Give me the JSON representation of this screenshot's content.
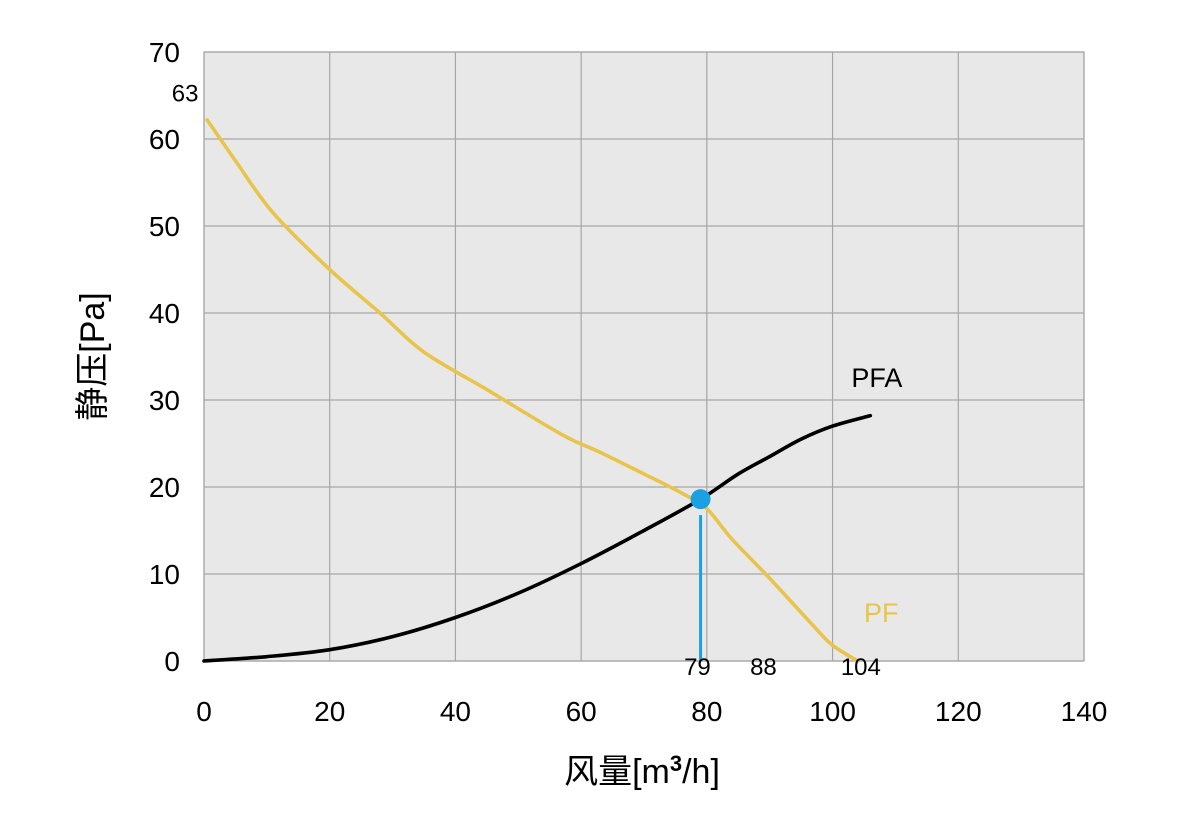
{
  "chart_data": {
    "type": "line",
    "xlabel": "风量[m³/h]",
    "xlabel_parts": {
      "main": "风量[m",
      "sup": "3",
      "tail": "/h]"
    },
    "ylabel": "静压[Pa]",
    "xlim": [
      0,
      140
    ],
    "ylim": [
      0,
      70
    ],
    "xticks": [
      0,
      20,
      40,
      60,
      80,
      100,
      120,
      140
    ],
    "yticks": [
      0,
      10,
      20,
      30,
      40,
      50,
      60,
      70
    ],
    "grid": true,
    "plot_background": "#e8e8e8",
    "grid_color": "#a6a6a6",
    "series": [
      {
        "name": "PF",
        "color": "#e8c44b",
        "label_at": [
          105,
          4.5
        ],
        "points": [
          [
            0.5,
            62.2
          ],
          [
            5,
            57.5
          ],
          [
            11,
            51.5
          ],
          [
            20,
            45
          ],
          [
            28,
            40
          ],
          [
            35,
            35.5
          ],
          [
            45,
            31.2
          ],
          [
            57,
            26
          ],
          [
            63,
            24
          ],
          [
            70,
            21.5
          ],
          [
            76,
            19.3
          ],
          [
            80,
            17.5
          ],
          [
            84,
            14
          ],
          [
            90,
            9.5
          ],
          [
            97,
            4
          ],
          [
            100,
            1.8
          ],
          [
            104,
            0
          ]
        ]
      },
      {
        "name": "PFA",
        "color": "#000000",
        "label_at": [
          103,
          31.5
        ],
        "points": [
          [
            0,
            0
          ],
          [
            10,
            0.5
          ],
          [
            20,
            1.3
          ],
          [
            30,
            2.8
          ],
          [
            40,
            5
          ],
          [
            50,
            7.8
          ],
          [
            60,
            11.2
          ],
          [
            70,
            15
          ],
          [
            79,
            18.6
          ],
          [
            85,
            21.5
          ],
          [
            90,
            23.5
          ],
          [
            95,
            25.5
          ],
          [
            100,
            27
          ],
          [
            106,
            28.2
          ]
        ]
      }
    ],
    "operating_point": {
      "x": 79,
      "y": 18.6,
      "color": "#1ba1e2"
    },
    "annotations": [
      {
        "text": "63",
        "x": -3,
        "y": 64.3,
        "role": "y-value"
      },
      {
        "text": "79",
        "x": 78.5,
        "y": -1.6,
        "role": "x-value"
      },
      {
        "text": "88",
        "x": 89,
        "y": -1.6,
        "role": "x-value"
      },
      {
        "text": "104",
        "x": 104.5,
        "y": -1.6,
        "role": "x-value"
      }
    ]
  }
}
